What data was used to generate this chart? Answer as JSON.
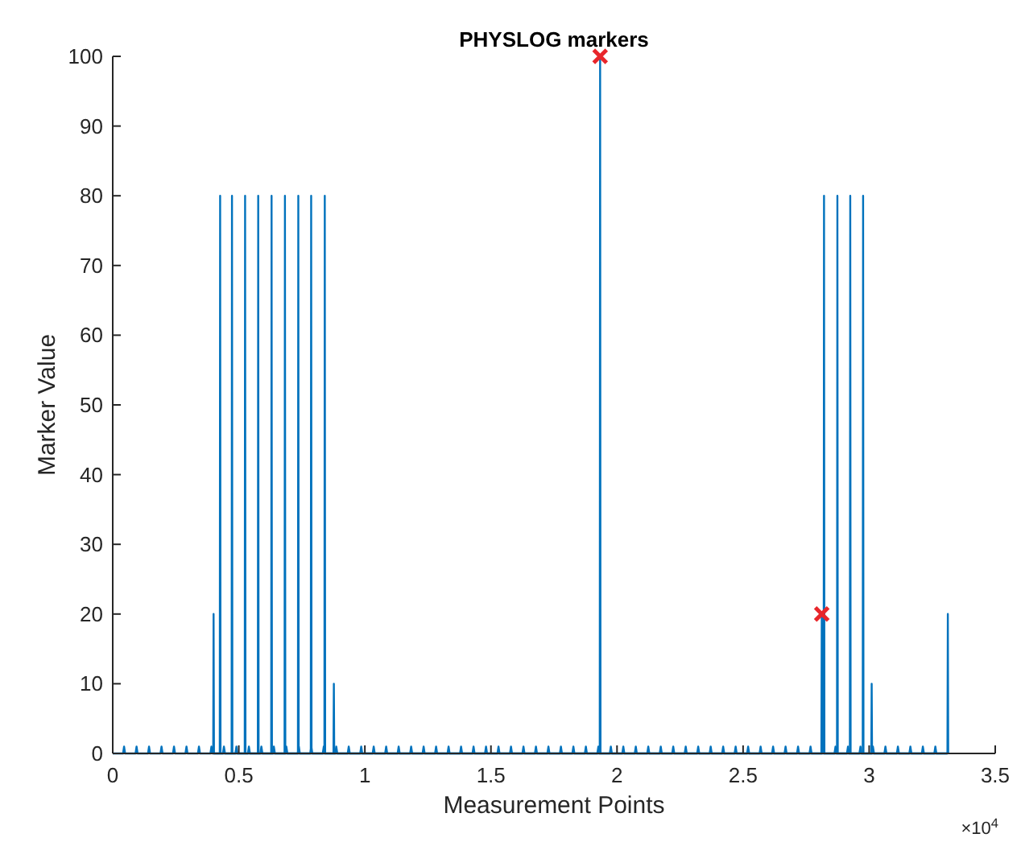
{
  "chart_data": {
    "type": "line",
    "title": "PHYSLOG markers",
    "xlabel": "Measurement Points",
    "ylabel": "Marker Value",
    "xlim": [
      0,
      3.5
    ],
    "xticks": [
      0,
      0.5,
      1,
      1.5,
      2,
      2.5,
      3,
      3.5
    ],
    "ylim": [
      0,
      100
    ],
    "yticks": [
      0,
      10,
      20,
      30,
      40,
      50,
      60,
      70,
      80,
      90,
      100
    ],
    "grid": false,
    "line_style": "solid",
    "annotations": [
      "×10$^{4}$"
    ],
    "series": [
      {
        "color": "#0072bd",
        "x": [
          0,
          0.041,
          0.045,
          0.049,
          0.0905,
          0.0945,
          0.0985,
          0.14,
          0.144,
          0.148,
          0.1895,
          0.1935,
          0.1975,
          0.239,
          0.243,
          0.247,
          0.2885,
          0.2925,
          0.2965,
          0.338,
          0.342,
          0.346,
          0.3875,
          0.3915,
          0.3955,
          0.437,
          0.441,
          0.445,
          0.4865,
          0.4905,
          0.4945,
          0.536,
          0.54,
          0.544,
          0.5855,
          0.5895,
          0.5935,
          0.635,
          0.639,
          0.643,
          0.6845,
          0.6885,
          0.6925,
          0.734,
          0.738,
          0.742,
          0.7835,
          0.7875,
          0.7915,
          0.833,
          0.837,
          0.841,
          0.8825,
          0.8865,
          0.8905,
          0.932,
          0.936,
          0.94,
          0.9815,
          0.9855,
          0.9895,
          1.031,
          1.035,
          1.039,
          1.0805,
          1.0845,
          1.0885,
          1.13,
          1.134,
          1.138,
          1.1795,
          1.1835,
          1.1875,
          1.229,
          1.233,
          1.237,
          1.2785,
          1.2825,
          1.2865,
          1.328,
          1.332,
          1.336,
          1.3775,
          1.3815,
          1.3855,
          1.427,
          1.431,
          1.435,
          1.4765,
          1.4805,
          1.4845,
          1.526,
          1.53,
          1.534,
          1.5755,
          1.5795,
          1.5835,
          1.625,
          1.629,
          1.633,
          1.6745,
          1.6785,
          1.6825,
          1.724,
          1.728,
          1.732,
          1.7735,
          1.7775,
          1.7815,
          1.823,
          1.827,
          1.831,
          1.8725,
          1.8765,
          1.8805,
          1.922,
          1.926,
          1.93,
          1.9715,
          1.9755,
          1.9795,
          2.021,
          2.025,
          2.029,
          2.0705,
          2.0745,
          2.0785,
          2.12,
          2.124,
          2.128,
          2.1695,
          2.1735,
          2.1775,
          2.219,
          2.223,
          2.227,
          2.2685,
          2.2725,
          2.2765,
          2.318,
          2.322,
          2.326,
          2.3675,
          2.3715,
          2.3755,
          2.417,
          2.421,
          2.425,
          2.4665,
          2.4705,
          2.4745,
          2.516,
          2.52,
          2.524,
          2.5655,
          2.5695,
          2.5735,
          2.615,
          2.619,
          2.623,
          2.6645,
          2.6685,
          2.6725,
          2.714,
          2.718,
          2.722,
          2.7635,
          2.7675,
          2.7715,
          2.813,
          2.817,
          2.821,
          2.8625,
          2.8665,
          2.8705,
          2.912,
          2.916,
          2.92,
          2.9615,
          2.9655,
          2.9695,
          3.011,
          3.015,
          3.019,
          3.0605,
          3.0645,
          3.0685,
          3.11,
          3.114,
          3.118,
          3.1595,
          3.1635,
          3.1675,
          3.209,
          3.213,
          3.217,
          3.2585,
          3.2625,
          3.2665,
          3.31
        ],
        "values": [
          0,
          0,
          1,
          0,
          0,
          1,
          0,
          0,
          1,
          0,
          0,
          1,
          0,
          0,
          1,
          0,
          0,
          1,
          0,
          0,
          1,
          0,
          0,
          1,
          0,
          0,
          1,
          0,
          0,
          1,
          0,
          0,
          1,
          0,
          0,
          1,
          0,
          0,
          1,
          0,
          0,
          1,
          0,
          0,
          1,
          0,
          0,
          1,
          0,
          0,
          1,
          0,
          0,
          1,
          0,
          0,
          1,
          0,
          0,
          1,
          0,
          0,
          1,
          0,
          0,
          1,
          0,
          0,
          1,
          0,
          0,
          1,
          0,
          0,
          1,
          0,
          0,
          1,
          0,
          0,
          1,
          0,
          0,
          1,
          0,
          0,
          1,
          0,
          0,
          1,
          0,
          0,
          1,
          0,
          0,
          1,
          0,
          0,
          1,
          0,
          0,
          1,
          0,
          0,
          1,
          0,
          0,
          1,
          0,
          0,
          1,
          0,
          0,
          1,
          0,
          0,
          1,
          0,
          0,
          1,
          0,
          0,
          1,
          0,
          0,
          1,
          0,
          0,
          1,
          0,
          0,
          1,
          0,
          0,
          1,
          0,
          0,
          1,
          0,
          0,
          1,
          0,
          0,
          1,
          0,
          0,
          1,
          0,
          0,
          1,
          0,
          0,
          1,
          0,
          0,
          1,
          0,
          0,
          1,
          0,
          0,
          1,
          0,
          0,
          1,
          0,
          0,
          1,
          0,
          0,
          1,
          0,
          0,
          1,
          0,
          0,
          1,
          0,
          0,
          1,
          0,
          0,
          1,
          0,
          0,
          1,
          0,
          0,
          1,
          0,
          0,
          1,
          0,
          0,
          1,
          0,
          0,
          1,
          0,
          0
        ]
      },
      {
        "color": "#0072bd",
        "x": [
          0.3985,
          0.4,
          0.4015,
          0.4245,
          0.426,
          0.4275,
          0.4715,
          0.473,
          0.4745,
          0.5235,
          0.525,
          0.5265,
          0.5755,
          0.577,
          0.5785,
          0.6285,
          0.63,
          0.6315,
          0.6815,
          0.683,
          0.6845,
          0.7345,
          0.736,
          0.7375,
          0.7855,
          0.787,
          0.7885,
          0.8395,
          0.841,
          0.8425,
          0.8755,
          0.877,
          0.8785,
          1.9315,
          1.933,
          1.9345,
          2.8105,
          2.812,
          2.8135,
          2.8195,
          2.821,
          2.8225,
          2.8725,
          2.874,
          2.8755,
          2.9235,
          2.925,
          2.9265,
          2.9745,
          2.976,
          2.9775,
          3.0085,
          3.01,
          3.0115,
          3.3105,
          3.312,
          3.3135
        ],
        "values": [
          0,
          20,
          0,
          0,
          80,
          0,
          0,
          80,
          0,
          0,
          80,
          0,
          0,
          80,
          0,
          0,
          80,
          0,
          0,
          80,
          0,
          0,
          80,
          0,
          0,
          80,
          0,
          0,
          80,
          0,
          0,
          10,
          0,
          0,
          100,
          0,
          0,
          20,
          0,
          0,
          80,
          0,
          0,
          80,
          0,
          0,
          80,
          0,
          0,
          80,
          0,
          0,
          10,
          0,
          0,
          20,
          0
        ]
      },
      {
        "type": "scatter",
        "marker": "cross",
        "color": "#e8262b",
        "x": [
          1.933,
          2.812
        ],
        "values": [
          100,
          20
        ]
      }
    ]
  }
}
